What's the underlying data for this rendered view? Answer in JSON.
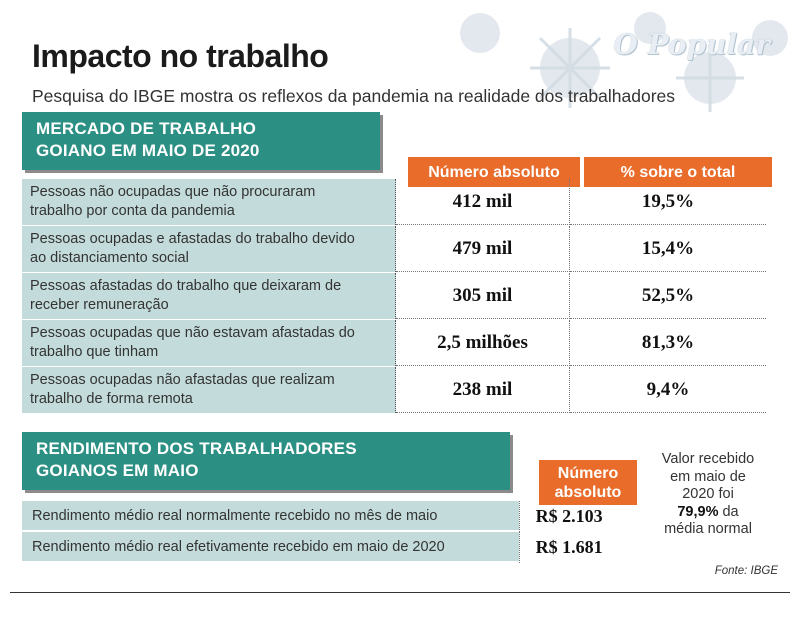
{
  "header": {
    "title": "Impacto no trabalho",
    "subtitle": "Pesquisa do IBGE mostra os reflexos da pandemia na realidade dos trabalhadores",
    "logo": "O Popular"
  },
  "section1": {
    "banner_line1": "MERCADO DE TRABALHO",
    "banner_line2": "GOIANO EM MAIO DE 2020",
    "col1": "Número absoluto",
    "col2": "% sobre o total",
    "rows": [
      {
        "line1": "Pessoas não ocupadas que não procuraram",
        "line2": "trabalho por conta da pandemia",
        "abs": "412 mil",
        "pct": "19,5%"
      },
      {
        "line1": "Pessoas ocupadas e afastadas do trabalho devido",
        "line2": "ao distanciamento social",
        "abs": "479 mil",
        "pct": "15,4%"
      },
      {
        "line1": "Pessoas afastadas do trabalho que deixaram de",
        "line2": "receber remuneração",
        "abs": "305 mil",
        "pct": "52,5%"
      },
      {
        "line1": "Pessoas ocupadas que não estavam afastadas do",
        "line2": "trabalho que tinham",
        "abs": "2,5 milhões",
        "pct": "81,3%"
      },
      {
        "line1": "Pessoas ocupadas não afastadas que realizam",
        "line2": "trabalho de forma remota",
        "abs": "238 mil",
        "pct": "9,4%"
      }
    ]
  },
  "section2": {
    "banner_line1": "RENDIMENTO DOS TRABALHADORES",
    "banner_line2": "GOIANOS EM MAIO",
    "col_line1": "Número",
    "col_line2": "absoluto",
    "rows": [
      {
        "label": "Rendimento médio real normalmente recebido no mês de maio",
        "value": "R$ 2.103"
      },
      {
        "label": "Rendimento médio real efetivamente recebido em maio de 2020",
        "value": "R$ 1.681"
      }
    ],
    "note": {
      "line1": "Valor recebido",
      "line2": "em maio de",
      "line3": "2020 foi",
      "highlight": "79,9%",
      "line4_rest": " da",
      "line5": "média normal"
    }
  },
  "footer": {
    "source": "Fonte: IBGE"
  },
  "colors": {
    "banner": "#2c8f83",
    "header_cells": "#e96c2a",
    "label_cells": "#c3dcdb"
  }
}
